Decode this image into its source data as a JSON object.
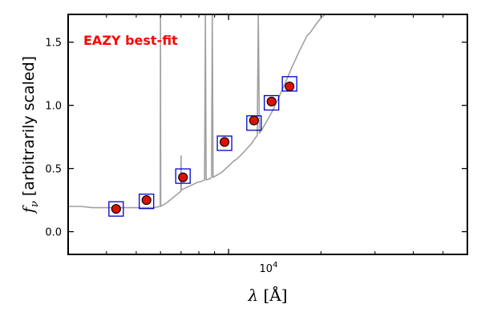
{
  "chart_data": {
    "type": "scatter",
    "x_scale": "log",
    "xlabel_symbol": "λ",
    "xlabel_unit": "[Å]",
    "ylabel_symbol": "f",
    "ylabel_subscript": "ν",
    "ylabel_text": " [arbitrarily scaled]",
    "xlim": [
      3000,
      60000
    ],
    "ylim": [
      -0.18,
      1.72
    ],
    "x_tick_label": {
      "base": "10",
      "exponent": "4",
      "value": 10000
    },
    "y_ticks": [
      0.0,
      0.5,
      1.0,
      1.5
    ],
    "y_tick_labels": [
      "0.0",
      "0.5",
      "1.0",
      "1.5"
    ],
    "annotation": {
      "text": "EAZY best-fit",
      "color": "#ff0000"
    },
    "colors": {
      "template": "#a0a0a0",
      "model_box": "#0000cc",
      "observed_fill": "#dd1100",
      "observed_edge": "#000000"
    },
    "series": [
      {
        "role": "template",
        "x": [
          3000,
          3300,
          3600,
          3900,
          4200,
          4500,
          4800,
          5100,
          5400,
          5700,
          5990,
          6000,
          6010,
          6300,
          6600,
          6990,
          7000,
          7010,
          7300,
          7600,
          7900,
          8200,
          8350,
          8400,
          8450,
          8700,
          8800,
          8850,
          8900,
          9200,
          9500,
          9800,
          10100,
          10400,
          10700,
          11000,
          11300,
          11600,
          11900,
          12200,
          12400,
          12500,
          12600,
          13000,
          13500,
          14000,
          14500,
          15000,
          15500,
          16000,
          16500,
          17000,
          17500,
          18000,
          18500,
          19000,
          19500,
          20000,
          20600
        ],
        "y": [
          0.2,
          0.2,
          0.19,
          0.19,
          0.19,
          0.19,
          0.19,
          0.19,
          0.19,
          0.19,
          0.2,
          1.72,
          0.2,
          0.23,
          0.27,
          0.32,
          0.6,
          0.33,
          0.35,
          0.37,
          0.39,
          0.4,
          0.41,
          1.72,
          0.41,
          0.42,
          0.43,
          1.72,
          0.43,
          0.45,
          0.47,
          0.5,
          0.53,
          0.56,
          0.58,
          0.61,
          0.64,
          0.67,
          0.7,
          0.74,
          0.76,
          1.72,
          0.78,
          0.83,
          0.9,
          0.97,
          1.05,
          1.13,
          1.21,
          1.29,
          1.36,
          1.43,
          1.49,
          1.55,
          1.58,
          1.62,
          1.66,
          1.69,
          1.72
        ]
      },
      {
        "role": "model",
        "x": [
          4300,
          5400,
          7100,
          9700,
          12100,
          13800,
          15800
        ],
        "y": [
          0.18,
          0.24,
          0.44,
          0.7,
          0.86,
          1.02,
          1.17
        ]
      },
      {
        "role": "observed",
        "x": [
          4300,
          5400,
          7100,
          9700,
          12100,
          13800,
          15800
        ],
        "y": [
          0.18,
          0.25,
          0.43,
          0.71,
          0.88,
          1.03,
          1.15
        ]
      }
    ]
  }
}
